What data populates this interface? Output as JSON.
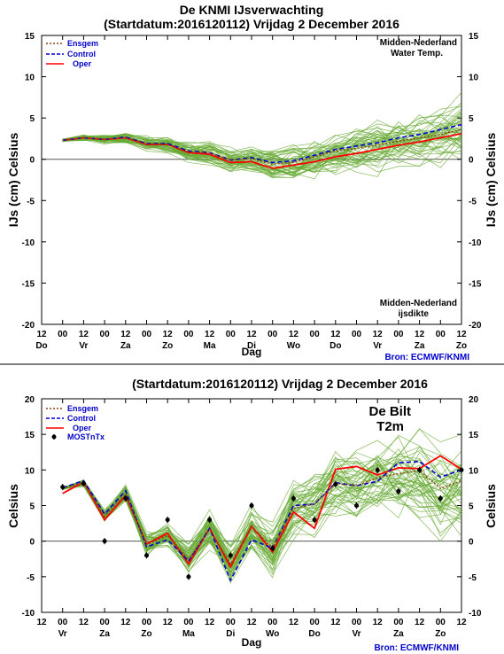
{
  "chart_data": [
    {
      "type": "line",
      "title": "De KNMI IJsverwachting",
      "subtitle": "(Startdatum:2016120112)  Vrijdag  2 December 2016",
      "ylabel_left": "IJs (cm)  Celsius",
      "ylabel_right": "IJs (cm)  Celsius",
      "xlabel": "Dag",
      "ylim": [
        -20,
        15
      ],
      "yticks": [
        "15",
        "10",
        "5",
        "0",
        "-5",
        "-10",
        "-15",
        "-20"
      ],
      "x_hours": [
        "12",
        "00",
        "12",
        "00",
        "12",
        "00",
        "12",
        "00",
        "12",
        "00",
        "12",
        "00",
        "12",
        "00",
        "12",
        "00",
        "12",
        "00",
        "12",
        "00",
        "12"
      ],
      "x_days": [
        "Do",
        "Vr",
        "Za",
        "Zo",
        "Ma",
        "Di",
        "Wo",
        "Do",
        "Vr",
        "Za",
        "Zo"
      ],
      "legend": [
        {
          "label": "Ensgem",
          "color": "#8b4513",
          "dash": "dotted"
        },
        {
          "label": "Control",
          "color": "#0000cc",
          "dash": "dashed"
        },
        {
          "label": "Oper",
          "color": "#ff0000",
          "dash": "solid"
        }
      ],
      "annotation_top": [
        "Midden-Nederland",
        "Water Temp."
      ],
      "annotation_bottom": [
        "Midden-Nederland",
        "ijsdikte"
      ],
      "source": "Bron: ECMWF/KNMI",
      "x": [
        1,
        2,
        3,
        4,
        5,
        6,
        7,
        8,
        9,
        10,
        11,
        12,
        13,
        14,
        15,
        16,
        17,
        18,
        19,
        20
      ],
      "series": [
        {
          "name": "Ensgem",
          "values": [
            2.3,
            2.6,
            2.4,
            2.6,
            1.9,
            1.8,
            0.9,
            0.8,
            -0.1,
            0.1,
            -0.6,
            -0.4,
            0.3,
            1.0,
            1.3,
            1.7,
            2.2,
            2.6,
            3.0,
            3.6
          ]
        },
        {
          "name": "Control",
          "values": [
            2.3,
            2.6,
            2.4,
            2.7,
            1.9,
            1.9,
            1.0,
            0.8,
            -0.1,
            0.2,
            -0.4,
            -0.2,
            0.5,
            1.2,
            1.6,
            2.0,
            2.6,
            3.0,
            3.6,
            4.2
          ]
        },
        {
          "name": "Oper",
          "values": [
            2.3,
            2.6,
            2.4,
            2.6,
            1.8,
            1.8,
            0.8,
            0.6,
            -0.4,
            -0.3,
            -1.1,
            -0.7,
            -0.3,
            0.3,
            0.7,
            1.2,
            1.7,
            2.1,
            2.6,
            3.1
          ]
        }
      ],
      "members_note": "ensemble members",
      "members_color": "#66aa33"
    },
    {
      "type": "line",
      "title": "(Startdatum:2016120112)  Vrijdag  2 December 2016",
      "ylabel_left": "Celsius",
      "ylabel_right": "Celsius",
      "xlabel": "Dag",
      "ylim": [
        -10,
        20
      ],
      "yticks": [
        "20",
        "15",
        "10",
        "5",
        "0",
        "-5",
        "-10"
      ],
      "x_hours": [
        "12",
        "00",
        "12",
        "00",
        "12",
        "00",
        "12",
        "00",
        "12",
        "00",
        "12",
        "00",
        "12",
        "00",
        "12",
        "00",
        "12",
        "00",
        "12",
        "00",
        "12"
      ],
      "x_days": [
        "Vr",
        "Za",
        "Zo",
        "Ma",
        "Di",
        "Wo",
        "Do",
        "Vr",
        "Za",
        "Zo"
      ],
      "legend": [
        {
          "label": "Ensgem",
          "color": "#8b4513",
          "dash": "dotted"
        },
        {
          "label": "Control",
          "color": "#0000cc",
          "dash": "dashed"
        },
        {
          "label": "Oper",
          "color": "#ff0000",
          "dash": "solid"
        },
        {
          "label": "MOSTnTx",
          "color": "#000000",
          "dash": "marker"
        }
      ],
      "annotation_top": [
        "De Bilt",
        "T2m"
      ],
      "source": "Bron: ECMWF/KNMI",
      "x": [
        1,
        2,
        3,
        4,
        5,
        6,
        7,
        8,
        9,
        10,
        11,
        12,
        13,
        14,
        15,
        16,
        17,
        18,
        19,
        20
      ],
      "series": [
        {
          "name": "Ensgem",
          "values": [
            7.4,
            8.2,
            3.5,
            6.6,
            -0.5,
            0.8,
            -2.6,
            1.6,
            -3.2,
            2.1,
            -1.0,
            4.6,
            5.2,
            8.1,
            7.8,
            8.9,
            9.5,
            9.9,
            7.4,
            8.5
          ]
        },
        {
          "name": "Control",
          "values": [
            7.5,
            8.5,
            3.8,
            7.1,
            -0.8,
            0.2,
            -2.8,
            1.8,
            -5.5,
            0.2,
            -1.0,
            5.0,
            5.2,
            8.2,
            7.8,
            8.4,
            11.0,
            11.2,
            9.0,
            10.0
          ]
        },
        {
          "name": "Oper",
          "values": [
            6.7,
            8.3,
            3.0,
            6.4,
            -0.4,
            1.1,
            -3.2,
            1.8,
            -3.6,
            2.1,
            -1.5,
            4.1,
            1.8,
            10.1,
            10.5,
            9.3,
            10.3,
            10.2,
            12.0,
            10.1
          ]
        },
        {
          "name": "MOSTnTx",
          "values": [
            7.6,
            8.1,
            0.0,
            6.0,
            -2.0,
            3.0,
            -5.0,
            3.0,
            -2.0,
            5.0,
            -1.0,
            6.0,
            3.0,
            8.0,
            5.0,
            10.0,
            7.0,
            10.0,
            6.0,
            10.0
          ]
        }
      ],
      "members_note": "ensemble members",
      "members_color": "#66aa33"
    }
  ]
}
